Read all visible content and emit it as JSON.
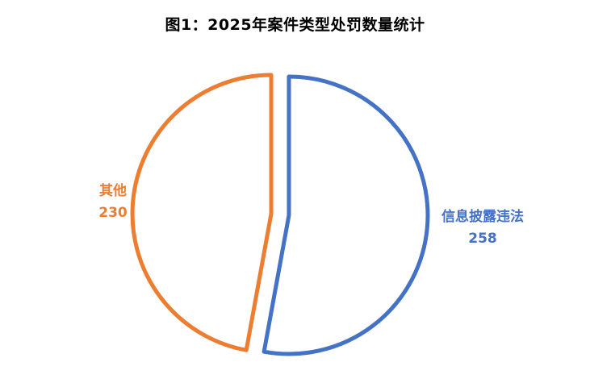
{
  "chart_data": {
    "type": "pie",
    "title": "图1：2025年案件类型处罚数量统计",
    "slices": [
      {
        "label": "信息披露违法",
        "value": 258,
        "value_label": "258",
        "color": "#4472C4"
      },
      {
        "label": "其他",
        "value": 230,
        "value_label": "230",
        "color": "#ED7D31"
      }
    ],
    "start_direction": "top",
    "clockwise": true,
    "exploded": true,
    "style": "outline-only"
  }
}
